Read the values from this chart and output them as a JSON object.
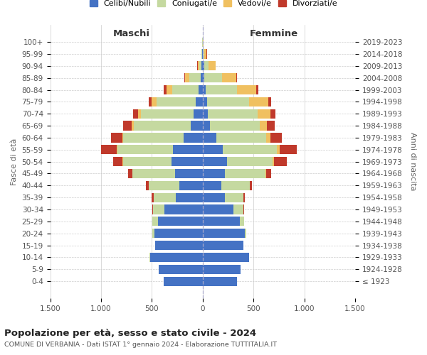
{
  "age_groups": [
    "100+",
    "95-99",
    "90-94",
    "85-89",
    "80-84",
    "75-79",
    "70-74",
    "65-69",
    "60-64",
    "55-59",
    "50-54",
    "45-49",
    "40-44",
    "35-39",
    "30-34",
    "25-29",
    "20-24",
    "15-19",
    "10-14",
    "5-9",
    "0-4"
  ],
  "birth_years": [
    "≤ 1923",
    "1924-1928",
    "1929-1933",
    "1934-1938",
    "1939-1943",
    "1944-1948",
    "1949-1953",
    "1954-1958",
    "1959-1963",
    "1964-1968",
    "1969-1973",
    "1974-1978",
    "1979-1983",
    "1984-1988",
    "1989-1993",
    "1994-1998",
    "1999-2003",
    "2004-2008",
    "2009-2013",
    "2014-2018",
    "2019-2023"
  ],
  "males": {
    "celibe": [
      2,
      4,
      10,
      18,
      40,
      70,
      90,
      115,
      185,
      295,
      310,
      270,
      230,
      265,
      375,
      440,
      475,
      465,
      520,
      430,
      385
    ],
    "coniugato": [
      1,
      7,
      25,
      115,
      260,
      385,
      515,
      565,
      595,
      545,
      475,
      420,
      300,
      220,
      115,
      55,
      18,
      4,
      1,
      0,
      0
    ],
    "vedovo": [
      0,
      3,
      12,
      38,
      55,
      45,
      28,
      18,
      9,
      4,
      2,
      1,
      1,
      0,
      0,
      0,
      0,
      0,
      0,
      0,
      0
    ],
    "divorziato": [
      0,
      2,
      7,
      12,
      28,
      28,
      55,
      82,
      115,
      155,
      95,
      45,
      28,
      18,
      4,
      2,
      1,
      0,
      0,
      0,
      0
    ]
  },
  "females": {
    "nubile": [
      2,
      4,
      12,
      16,
      26,
      44,
      52,
      72,
      135,
      200,
      240,
      215,
      185,
      215,
      300,
      365,
      415,
      400,
      455,
      375,
      335
    ],
    "coniugata": [
      1,
      10,
      42,
      175,
      310,
      415,
      490,
      490,
      490,
      530,
      450,
      400,
      275,
      185,
      100,
      42,
      12,
      3,
      1,
      0,
      0
    ],
    "vedova": [
      2,
      25,
      72,
      140,
      188,
      188,
      122,
      72,
      44,
      26,
      12,
      6,
      3,
      1,
      1,
      0,
      0,
      0,
      0,
      0,
      0
    ],
    "divorziata": [
      0,
      2,
      4,
      8,
      22,
      26,
      54,
      72,
      112,
      170,
      122,
      54,
      22,
      12,
      4,
      2,
      1,
      0,
      0,
      0,
      0
    ]
  },
  "colors": {
    "celibe": "#4472c4",
    "coniugato": "#c5d9a0",
    "vedovo": "#f0c060",
    "divorziato": "#c0392b"
  },
  "title": "Popolazione per età, sesso e stato civile - 2024",
  "subtitle": "COMUNE DI VERBANIA - Dati ISTAT 1° gennaio 2024 - Elaborazione TUTTITALIA.IT",
  "label_maschi": "Maschi",
  "label_femmine": "Femmine",
  "ylabel_left": "Fasce di età",
  "ylabel_right": "Anni di nascita",
  "xlim": 1500,
  "legend_labels": [
    "Celibi/Nubili",
    "Coniugati/e",
    "Vedovi/e",
    "Divorziati/e"
  ],
  "bg_color": "#ffffff",
  "grid_color": "#cccccc"
}
